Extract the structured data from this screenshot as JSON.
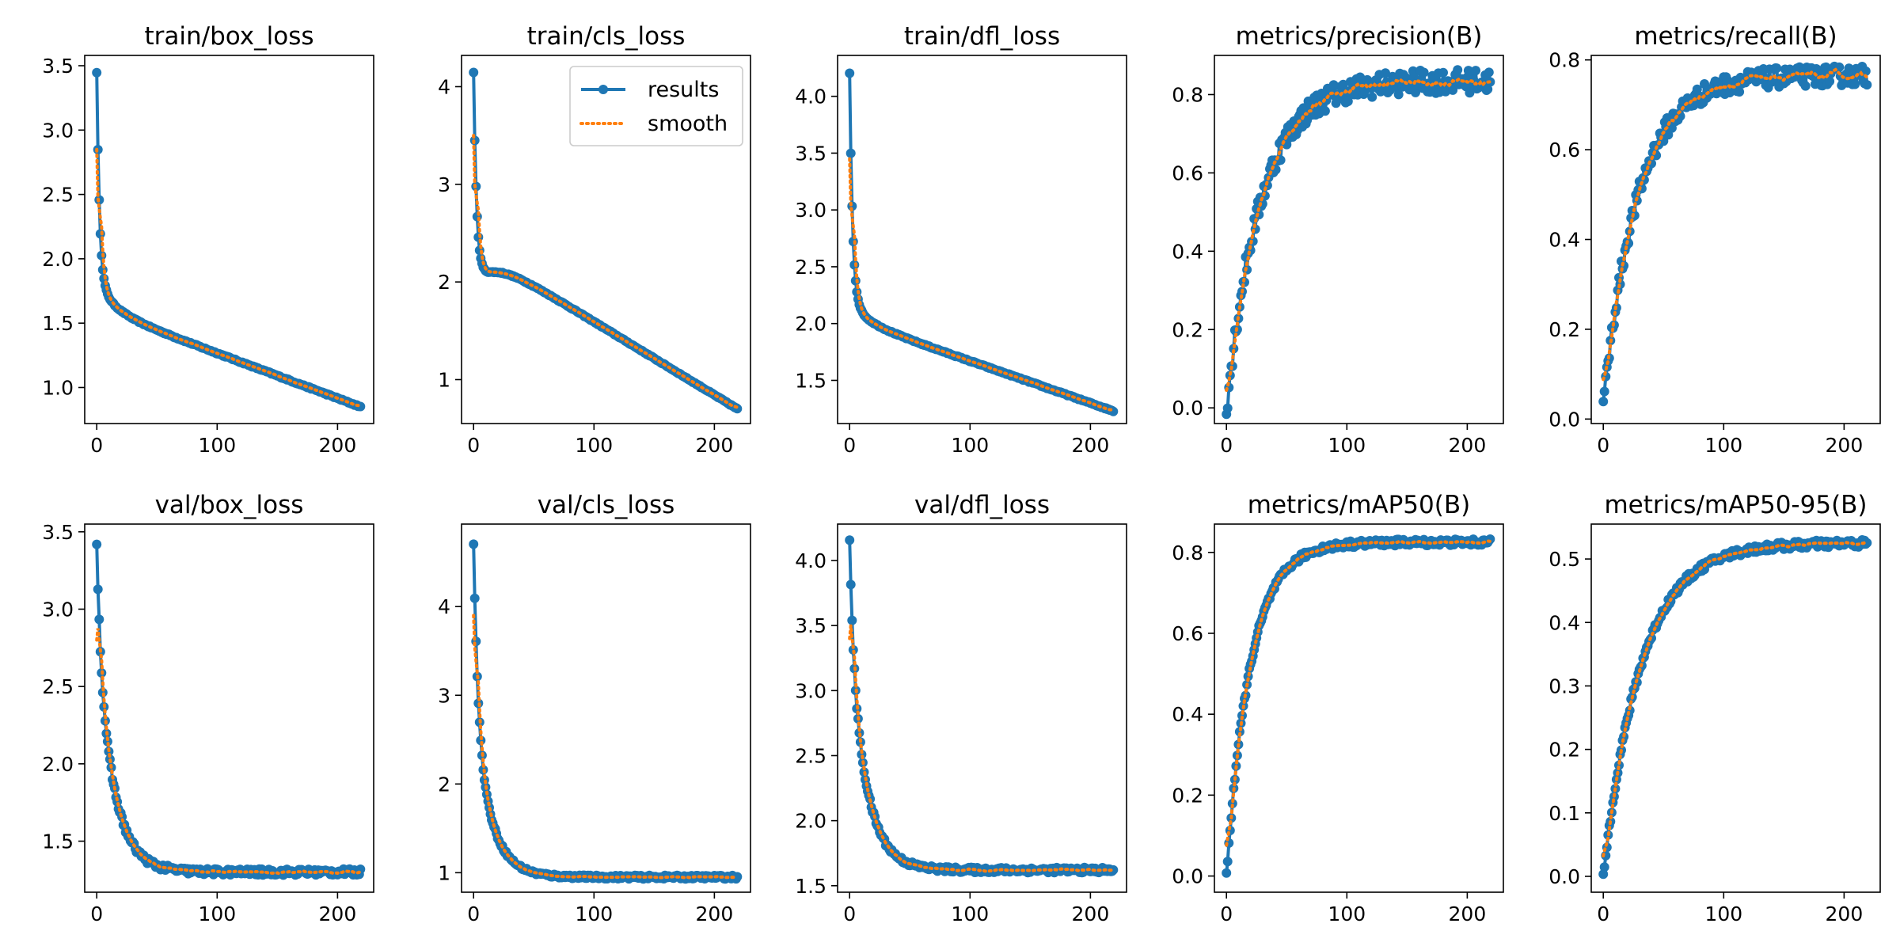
{
  "colors": {
    "results": "#1f77b4",
    "smooth": "#ff7f0e",
    "axes": "#000000"
  },
  "legend": {
    "panel": 1,
    "placement": "top-right",
    "results_label": "results",
    "smooth_label": "smooth"
  },
  "chart_data": [
    {
      "type": "line",
      "title": "train/box_loss",
      "xlim": [
        -10,
        230
      ],
      "ylim": [
        0.72,
        3.58
      ],
      "xticks": [
        0,
        100,
        200
      ],
      "xtick_labels": [
        "0",
        "100",
        "200"
      ],
      "yticks": [
        1.0,
        1.5,
        2.0,
        2.5,
        3.0,
        3.5
      ],
      "ytick_labels": [
        "1.0",
        "1.5",
        "2.0",
        "2.5",
        "3.0",
        "3.5"
      ],
      "curve": {
        "model": "decay",
        "start": 3.45,
        "end": 0.85,
        "k": 0.45,
        "knee": 1.62,
        "tail": 0.0035,
        "noise": 0.005
      },
      "smooth_first": 2.85,
      "series": [
        {
          "name": "results"
        },
        {
          "name": "smooth"
        }
      ]
    },
    {
      "type": "line",
      "title": "train/cls_loss",
      "xlim": [
        -10,
        230
      ],
      "ylim": [
        0.55,
        4.32
      ],
      "xticks": [
        0,
        100,
        200
      ],
      "xtick_labels": [
        "0",
        "100",
        "200"
      ],
      "yticks": [
        1,
        2,
        3,
        4
      ],
      "ytick_labels": [
        "1",
        "2",
        "3",
        "4"
      ],
      "curve": {
        "model": "decay",
        "start": 4.15,
        "end": 0.7,
        "k": 0.4,
        "knee": 2.2,
        "tail": 0.0075,
        "noise": 0.005
      },
      "smooth_first": 3.5,
      "series": [
        {
          "name": "results"
        },
        {
          "name": "smooth"
        }
      ]
    },
    {
      "type": "line",
      "title": "train/dfl_loss",
      "xlim": [
        -10,
        230
      ],
      "ylim": [
        1.12,
        4.36
      ],
      "xticks": [
        0,
        100,
        200
      ],
      "xtick_labels": [
        "0",
        "100",
        "200"
      ],
      "yticks": [
        1.5,
        2.0,
        2.5,
        3.0,
        3.5,
        4.0
      ],
      "ytick_labels": [
        "1.5",
        "2.0",
        "2.5",
        "3.0",
        "3.5",
        "4.0"
      ],
      "curve": {
        "model": "decay",
        "start": 4.2,
        "end": 1.23,
        "k": 0.42,
        "knee": 2.0,
        "tail": 0.0037,
        "noise": 0.005
      },
      "smooth_first": 3.45,
      "series": [
        {
          "name": "results"
        },
        {
          "name": "smooth"
        }
      ]
    },
    {
      "type": "line",
      "title": "metrics/precision(B)",
      "xlim": [
        -10,
        230
      ],
      "ylim": [
        -0.04,
        0.9
      ],
      "xticks": [
        0,
        100,
        200
      ],
      "xtick_labels": [
        "0",
        "100",
        "200"
      ],
      "yticks": [
        0.0,
        0.2,
        0.4,
        0.6,
        0.8
      ],
      "ytick_labels": [
        "0.0",
        "0.2",
        "0.4",
        "0.6",
        "0.8"
      ],
      "curve": {
        "model": "growth",
        "start": 0.0,
        "end": 0.835,
        "rate": 0.035,
        "noise": 0.03
      },
      "series": [
        {
          "name": "results"
        },
        {
          "name": "smooth"
        }
      ]
    },
    {
      "type": "line",
      "title": "metrics/recall(B)",
      "xlim": [
        -10,
        230
      ],
      "ylim": [
        -0.01,
        0.81
      ],
      "xticks": [
        0,
        100,
        200
      ],
      "xtick_labels": [
        "0",
        "100",
        "200"
      ],
      "yticks": [
        0.0,
        0.2,
        0.4,
        0.6,
        0.8
      ],
      "ytick_labels": [
        "0.0",
        "0.2",
        "0.4",
        "0.6",
        "0.8"
      ],
      "curve": {
        "model": "growth",
        "start": 0.03,
        "end": 0.765,
        "rate": 0.035,
        "noise": 0.022
      },
      "series": [
        {
          "name": "results"
        },
        {
          "name": "smooth"
        }
      ]
    },
    {
      "type": "line",
      "title": "val/box_loss",
      "xlim": [
        -10,
        230
      ],
      "ylim": [
        1.17,
        3.55
      ],
      "xticks": [
        0,
        100,
        200
      ],
      "xtick_labels": [
        "0",
        "100",
        "200"
      ],
      "yticks": [
        1.5,
        2.0,
        2.5,
        3.0,
        3.5
      ],
      "ytick_labels": [
        "1.5",
        "2.0",
        "2.5",
        "3.0",
        "3.5"
      ],
      "curve": {
        "model": "decay",
        "start": 3.43,
        "end": 1.3,
        "k": 0.35,
        "knee": 0.6,
        "tail": 0.0,
        "noise": 0.02
      },
      "smooth_first": 2.8,
      "series": [
        {
          "name": "results"
        },
        {
          "name": "smooth"
        }
      ]
    },
    {
      "type": "line",
      "title": "val/cls_loss",
      "xlim": [
        -10,
        230
      ],
      "ylim": [
        0.78,
        4.93
      ],
      "xticks": [
        0,
        100,
        200
      ],
      "xtick_labels": [
        "0",
        "100",
        "200"
      ],
      "yticks": [
        1,
        2,
        3,
        4
      ],
      "ytick_labels": [
        "1",
        "2",
        "3",
        "4"
      ],
      "curve": {
        "model": "decay",
        "start": 4.72,
        "end": 0.95,
        "k": 0.3,
        "knee": 1.9,
        "tail": 0.0,
        "noise": 0.02
      },
      "smooth_first": 3.9,
      "series": [
        {
          "name": "results"
        },
        {
          "name": "smooth"
        }
      ]
    },
    {
      "type": "line",
      "title": "val/dfl_loss",
      "xlim": [
        -10,
        230
      ],
      "ylim": [
        1.45,
        4.28
      ],
      "xticks": [
        0,
        100,
        200
      ],
      "xtick_labels": [
        "0",
        "100",
        "200"
      ],
      "yticks": [
        1.5,
        2.0,
        2.5,
        3.0,
        3.5,
        4.0
      ],
      "ytick_labels": [
        "1.5",
        "2.0",
        "2.5",
        "3.0",
        "3.5",
        "4.0"
      ],
      "curve": {
        "model": "decay",
        "start": 4.14,
        "end": 1.62,
        "k": 0.33,
        "knee": 0.75,
        "tail": 0.0,
        "noise": 0.02
      },
      "smooth_first": 3.4,
      "series": [
        {
          "name": "results"
        },
        {
          "name": "smooth"
        }
      ]
    },
    {
      "type": "line",
      "title": "metrics/mAP50(B)",
      "xlim": [
        -10,
        230
      ],
      "ylim": [
        -0.04,
        0.87
      ],
      "xticks": [
        0,
        100,
        200
      ],
      "xtick_labels": [
        "0",
        "100",
        "200"
      ],
      "yticks": [
        0.0,
        0.2,
        0.4,
        0.6,
        0.8
      ],
      "ytick_labels": [
        "0.0",
        "0.2",
        "0.4",
        "0.6",
        "0.8"
      ],
      "curve": {
        "model": "growth",
        "start": 0.0,
        "end": 0.825,
        "rate": 0.05,
        "noise": 0.008
      },
      "series": [
        {
          "name": "results"
        },
        {
          "name": "smooth"
        }
      ]
    },
    {
      "type": "line",
      "title": "metrics/mAP50-95(B)",
      "xlim": [
        -10,
        230
      ],
      "ylim": [
        -0.025,
        0.555
      ],
      "xticks": [
        0,
        100,
        200
      ],
      "xtick_labels": [
        "0",
        "100",
        "200"
      ],
      "yticks": [
        0.0,
        0.1,
        0.2,
        0.3,
        0.4,
        0.5
      ],
      "ytick_labels": [
        "0.0",
        "0.1",
        "0.2",
        "0.3",
        "0.4",
        "0.5"
      ],
      "curve": {
        "model": "growth",
        "start": 0.0,
        "end": 0.525,
        "rate": 0.032,
        "noise": 0.006
      },
      "series": [
        {
          "name": "results"
        },
        {
          "name": "smooth"
        }
      ]
    }
  ]
}
